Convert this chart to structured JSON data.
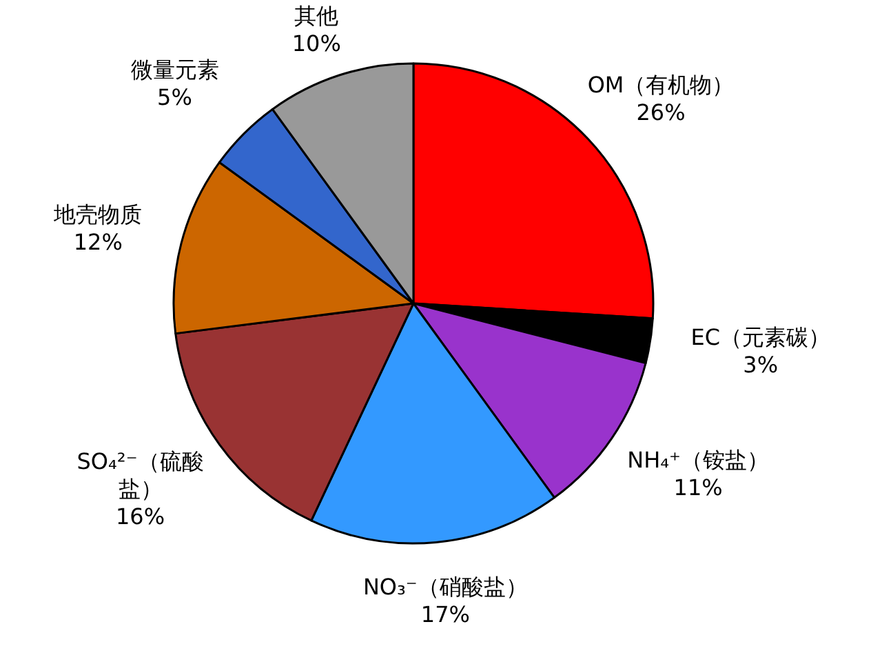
{
  "chart_data": {
    "type": "pie",
    "categories": [
      "OM（有机物）",
      "EC（元素碳）",
      "NH₄⁺（铵盐）",
      "NO₃⁻（硝酸盐）",
      "SO₄²⁻（硫酸盐）",
      "地壳物质",
      "微量元素",
      "其他"
    ],
    "values": [
      26,
      3,
      11,
      17,
      16,
      12,
      5,
      10
    ],
    "value_labels": [
      "26%",
      "3%",
      "11%",
      "17%",
      "16%",
      "12%",
      "5%",
      "10%"
    ],
    "colors": [
      "#ff0000",
      "#000000",
      "#9933cc",
      "#3399ff",
      "#993333",
      "#cc6600",
      "#3366cc",
      "#999999"
    ]
  }
}
